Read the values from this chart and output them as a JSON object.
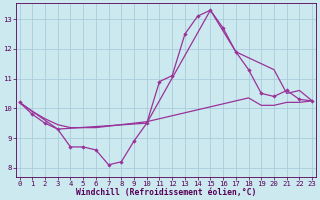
{
  "xlabel": "Windchill (Refroidissement éolien,°C)",
  "bg_color": "#cce9f0",
  "grid_color": "#aaccda",
  "line_color": "#993399",
  "ylim": [
    7.7,
    13.55
  ],
  "xlim": [
    -0.3,
    23.3
  ],
  "yticks": [
    8,
    9,
    10,
    11,
    12,
    13
  ],
  "xticks": [
    0,
    1,
    2,
    3,
    4,
    5,
    6,
    7,
    8,
    9,
    10,
    11,
    12,
    13,
    14,
    15,
    16,
    17,
    18,
    19,
    20,
    21,
    22,
    23
  ],
  "line1_x": [
    0,
    1,
    2,
    3,
    4,
    5,
    6,
    7,
    8,
    9,
    10,
    11,
    12,
    13,
    14,
    15,
    16,
    17,
    18,
    19,
    20,
    21,
    22,
    23
  ],
  "line1_y": [
    10.2,
    9.8,
    9.5,
    9.3,
    8.7,
    8.7,
    8.6,
    8.1,
    8.2,
    8.9,
    9.5,
    10.9,
    11.1,
    12.5,
    13.1,
    13.3,
    12.7,
    11.9,
    11.3,
    10.5,
    10.4,
    10.6,
    10.3,
    10.25
  ],
  "line2_x": [
    0,
    3,
    10,
    15,
    17,
    20,
    21,
    22,
    23
  ],
  "line2_y": [
    10.2,
    9.3,
    9.5,
    13.3,
    11.9,
    11.3,
    10.5,
    10.6,
    10.25
  ],
  "line3_x": [
    0,
    1,
    2,
    3,
    4,
    5,
    6,
    7,
    8,
    9,
    10,
    11,
    12,
    13,
    14,
    15,
    16,
    17,
    18,
    19,
    20,
    21,
    22,
    23
  ],
  "line3_y": [
    10.2,
    9.9,
    9.65,
    9.45,
    9.35,
    9.35,
    9.35,
    9.4,
    9.45,
    9.5,
    9.55,
    9.65,
    9.75,
    9.85,
    9.95,
    10.05,
    10.15,
    10.25,
    10.35,
    10.1,
    10.1,
    10.2,
    10.2,
    10.25
  ]
}
